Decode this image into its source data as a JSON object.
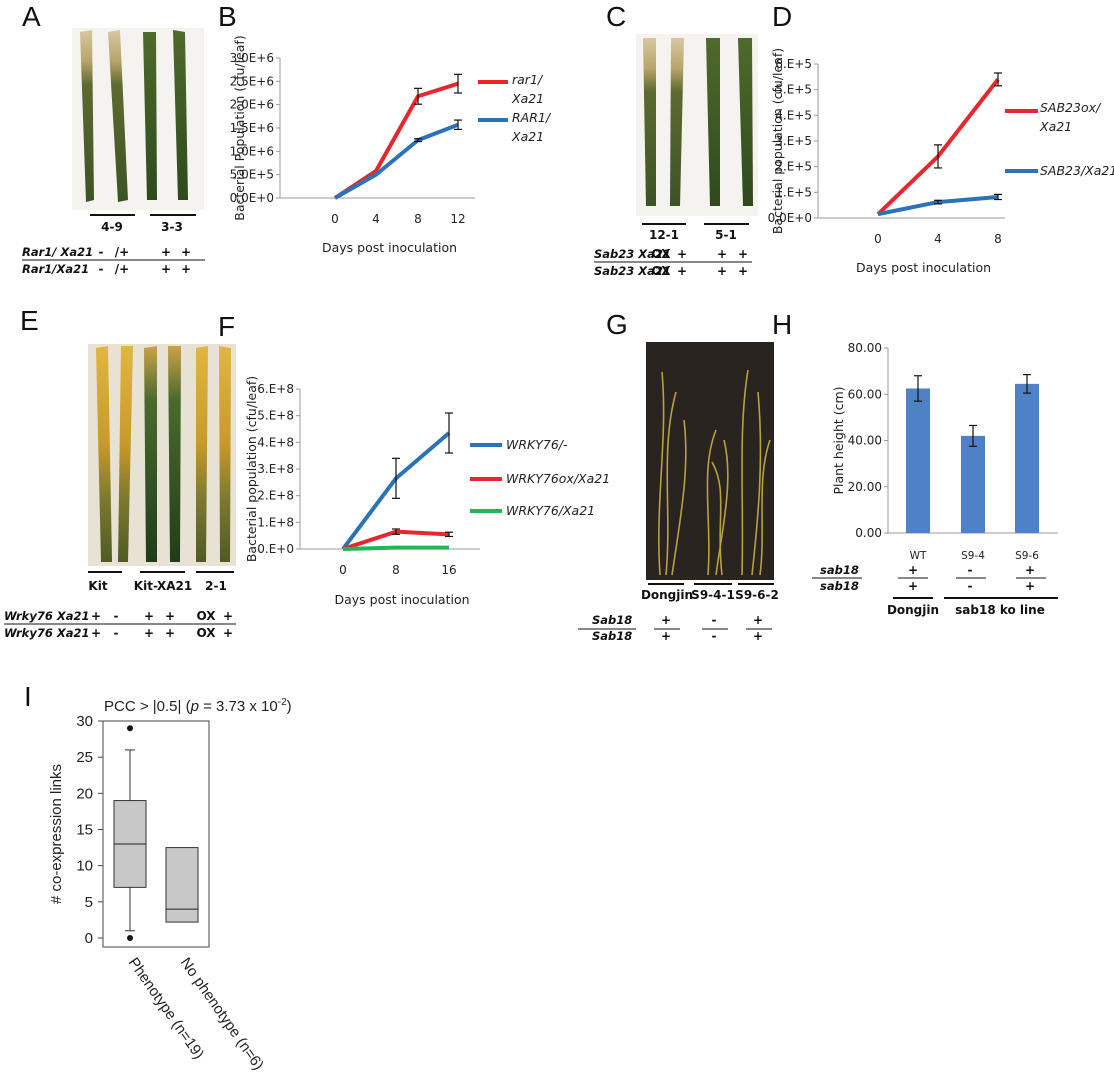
{
  "panels": {
    "A": "A",
    "B": "B",
    "C": "C",
    "D": "D",
    "E": "E",
    "F": "F",
    "G": "G",
    "H": "H",
    "I": "I"
  },
  "colors": {
    "red": "#e8262d",
    "blue": "#2a73b8",
    "green": "#1db954",
    "bar": "#4f81c7",
    "box": "#c8c8c8"
  },
  "panel_A": {
    "lines": [
      "4-9",
      "3-3"
    ],
    "row1_label": "Rar1/ Xa21",
    "row2_label": "Rar1/Xa21",
    "row1": [
      "-",
      "/+",
      "+",
      "+"
    ],
    "row2": [
      "-",
      "/+",
      "+",
      "+"
    ]
  },
  "panel_C": {
    "lines": [
      "12-1",
      "5-1"
    ],
    "row1_label": "Sab23 Xa21",
    "row2_label": "Sab23 Xa21",
    "row1": [
      "OX",
      "+",
      "+",
      "+"
    ],
    "row2": [
      "OX",
      "+",
      "+",
      "+"
    ]
  },
  "panel_E": {
    "lines": [
      "Kit",
      "Kit-XA21",
      "2-1"
    ],
    "row1_label": "Wrky76 Xa21",
    "row2_label": "Wrky76 Xa21",
    "row1": [
      "+",
      "-",
      "+",
      "+",
      "OX",
      "+"
    ],
    "row2": [
      "+",
      "-",
      "+",
      "+",
      "OX",
      "+"
    ]
  },
  "panel_G": {
    "lines": [
      "Dongjin",
      "S9-4-1",
      "S9-6-2"
    ],
    "row_label": "Sab18",
    "row_label2": "Sab18",
    "row1": [
      "+",
      "-",
      "+"
    ],
    "row2": [
      "+",
      "-",
      "+"
    ]
  },
  "panel_H_genotype": {
    "row_label": "sab18",
    "row_label2": "sab18",
    "row1": [
      "+",
      "-",
      "+"
    ],
    "row2": [
      "+",
      "-",
      "+"
    ],
    "group1": "Dongjin",
    "group2": "sab18 ko line"
  },
  "chart_data": [
    {
      "panel": "B",
      "type": "line",
      "xlabel": "Days post inoculation",
      "ylabel": "Bacterial Population (cfu/leaf)",
      "x": [
        0,
        4,
        8,
        12
      ],
      "ylim": [
        0,
        3000000
      ],
      "yticks": [
        "0.0E+0",
        "5.0E+5",
        "1.0E+6",
        "1.5E+6",
        "2.0E+6",
        "2.5E+6",
        "3.0E+6"
      ],
      "series": [
        {
          "name": "rar1/ Xa21",
          "legend": [
            "rar1/",
            "Xa21"
          ],
          "color": "#e8262d",
          "values": [
            0,
            580000,
            2180000,
            2450000
          ],
          "errors": [
            0,
            0,
            170000,
            200000
          ]
        },
        {
          "name": "RAR1/ Xa21",
          "legend": [
            "RAR1/",
            "Xa21"
          ],
          "color": "#2a73b8",
          "values": [
            0,
            500000,
            1240000,
            1570000
          ],
          "errors": [
            0,
            0,
            30000,
            100000
          ]
        }
      ]
    },
    {
      "panel": "D",
      "type": "line",
      "xlabel": "Days post inoculation",
      "ylabel": "Bacterial population (cfu/leaf)",
      "x": [
        0,
        4,
        8
      ],
      "ylim": [
        0,
        600000
      ],
      "yticks": [
        "0.0E+0",
        "1.E+5",
        "2.E+5",
        "3.E+5",
        "4.E+5",
        "5.E+5",
        "6.E+5"
      ],
      "series": [
        {
          "name": "SAB23ox/ Xa21",
          "legend": [
            "SAB23ox/",
            "Xa21"
          ],
          "color": "#e8262d",
          "values": [
            15000,
            240000,
            540000
          ],
          "errors": [
            0,
            45000,
            25000
          ]
        },
        {
          "name": "SAB23/Xa21",
          "legend": [
            "SAB23/Xa21"
          ],
          "color": "#2a73b8",
          "values": [
            15000,
            62000,
            82000
          ],
          "errors": [
            0,
            7000,
            10000
          ]
        }
      ]
    },
    {
      "panel": "F",
      "type": "line",
      "xlabel": "Days post inoculation",
      "ylabel": "Bacterial population (cfu/leaf)",
      "x": [
        0,
        8,
        16
      ],
      "ylim": [
        0,
        600000000
      ],
      "yticks": [
        "0.E+0",
        "1.E+8",
        "2.E+8",
        "3.E+8",
        "4.E+8",
        "5.E+8",
        "6.E+8"
      ],
      "series": [
        {
          "name": "WRKY76/-",
          "legend": [
            "WRKY76/-"
          ],
          "color": "#2a73b8",
          "values": [
            0,
            265000000,
            435000000
          ],
          "errors": [
            0,
            75000000,
            75000000
          ]
        },
        {
          "name": "WRKY76ox/Xa21",
          "legend": [
            "WRKY76ox/Xa21"
          ],
          "color": "#e8262d",
          "values": [
            0,
            65000000,
            55000000
          ],
          "errors": [
            0,
            10000000,
            8000000
          ]
        },
        {
          "name": "WRKY76/Xa21",
          "legend": [
            "WRKY76/Xa21"
          ],
          "color": "#1db954",
          "values": [
            0,
            5000000,
            5000000
          ],
          "errors": [
            0,
            0,
            0
          ]
        }
      ]
    },
    {
      "panel": "H",
      "type": "bar",
      "ylabel": "Plant height (cm)",
      "categories": [
        "WT",
        "S9-4",
        "S9-6"
      ],
      "values": [
        62.5,
        42,
        64.5
      ],
      "errors": [
        5.5,
        4.5,
        4
      ],
      "ylim": [
        0,
        80
      ],
      "yticks": [
        "0.00",
        "20.00",
        "40.00",
        "60.00",
        "80.00"
      ]
    },
    {
      "panel": "I",
      "type": "box",
      "title": "PCC > |0.5| (p = 3.73 x 10-2)",
      "title_parts": {
        "pre": "PCC > |0.5| (",
        "p": "p",
        "mid": " = 3.73 x 10",
        "exp": "-2",
        "post": ")"
      },
      "ylabel": "# co-expression links",
      "ylim": [
        0,
        30
      ],
      "yticks": [
        "0",
        "5",
        "10",
        "15",
        "20",
        "25",
        "30"
      ],
      "categories": [
        "Phenotype (n=19)",
        "No phenotype (n=6)"
      ],
      "boxes": [
        {
          "min": 1,
          "q1": 7,
          "median": 13,
          "q3": 19,
          "max": 26,
          "outliers": [
            29,
            0
          ]
        },
        {
          "min": 2.2,
          "q1": 2.2,
          "median": 4,
          "q3": 12.5,
          "max": 12.5,
          "outliers": []
        }
      ]
    }
  ]
}
